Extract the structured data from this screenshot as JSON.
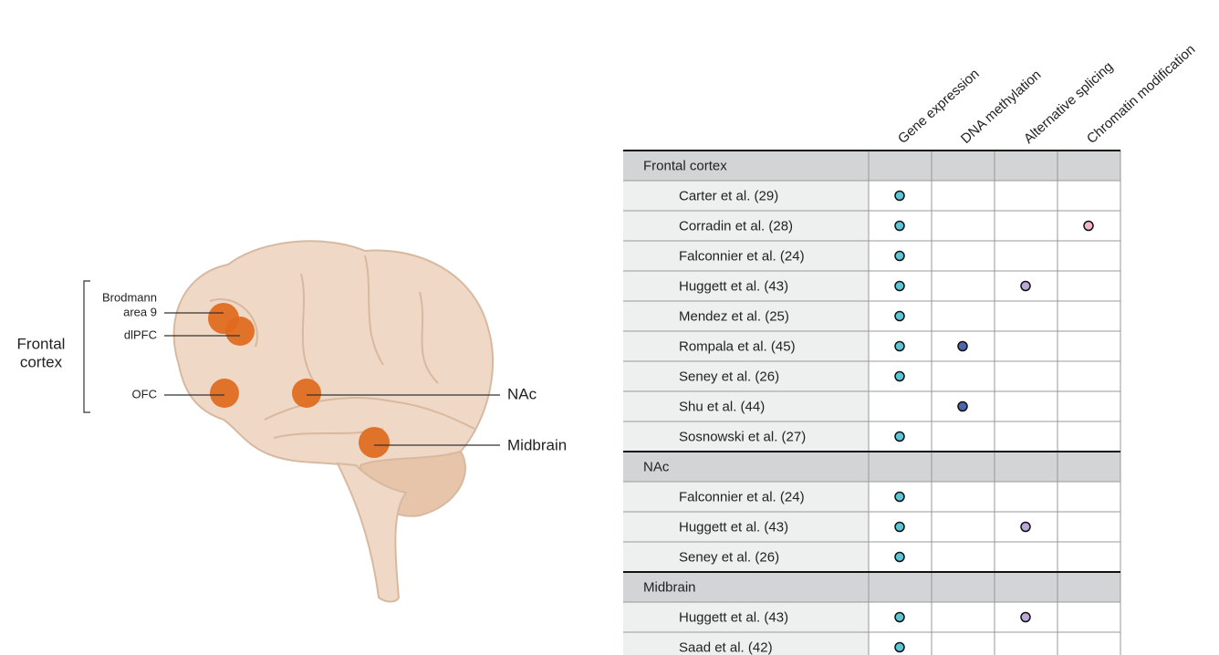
{
  "brain": {
    "group_label_lines": [
      "Frontal",
      "cortex"
    ],
    "regions": [
      {
        "label_lines": [
          "Brodmann",
          "area 9"
        ]
      },
      {
        "label_lines": [
          "dlPFC"
        ]
      },
      {
        "label_lines": [
          "OFC"
        ]
      },
      {
        "label_lines": [
          "NAc"
        ]
      },
      {
        "label_lines": [
          "Midbrain"
        ]
      }
    ]
  },
  "table": {
    "columns": [
      {
        "label": "Gene expression",
        "color": "#5ac6d6"
      },
      {
        "label": "DNA methylation",
        "color": "#4c66ad"
      },
      {
        "label": "Alternative splicing",
        "color": "#b9a8d8"
      },
      {
        "label": "Chromatin modification",
        "color": "#f2b6cc"
      }
    ],
    "groups": [
      {
        "name": "Frontal cortex",
        "rows": [
          {
            "study": "Carter et al. (29)",
            "marks": [
              true,
              false,
              false,
              false
            ]
          },
          {
            "study": "Corradin et al. (28)",
            "marks": [
              true,
              false,
              false,
              true
            ]
          },
          {
            "study": "Falconnier et al. (24)",
            "marks": [
              true,
              false,
              false,
              false
            ]
          },
          {
            "study": "Huggett et al. (43)",
            "marks": [
              true,
              false,
              true,
              false
            ]
          },
          {
            "study": "Mendez et al. (25)",
            "marks": [
              true,
              false,
              false,
              false
            ]
          },
          {
            "study": "Rompala et al. (45)",
            "marks": [
              true,
              true,
              false,
              false
            ]
          },
          {
            "study": "Seney et al. (26)",
            "marks": [
              true,
              false,
              false,
              false
            ]
          },
          {
            "study": "Shu et al. (44)",
            "marks": [
              false,
              true,
              false,
              false
            ]
          },
          {
            "study": "Sosnowski et al. (27)",
            "marks": [
              true,
              false,
              false,
              false
            ]
          }
        ]
      },
      {
        "name": "NAc",
        "rows": [
          {
            "study": "Falconnier et al. (24)",
            "marks": [
              true,
              false,
              false,
              false
            ]
          },
          {
            "study": "Huggett et al. (43)",
            "marks": [
              true,
              false,
              true,
              false
            ]
          },
          {
            "study": "Seney et al. (26)",
            "marks": [
              true,
              false,
              false,
              false
            ]
          }
        ]
      },
      {
        "name": "Midbrain",
        "rows": [
          {
            "study": "Huggett et al. (43)",
            "marks": [
              true,
              false,
              true,
              false
            ]
          },
          {
            "study": "Saad et al. (42)",
            "marks": [
              true,
              false,
              false,
              false
            ]
          }
        ]
      }
    ]
  }
}
